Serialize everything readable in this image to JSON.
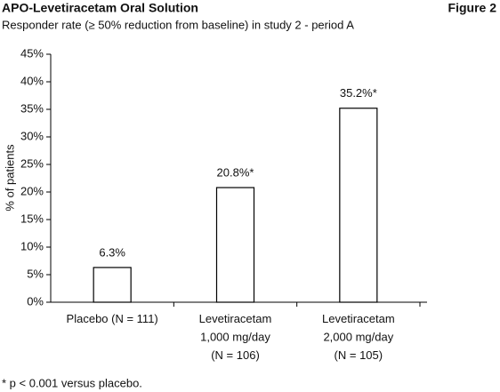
{
  "chart_data": {
    "type": "bar",
    "title": "APO-Levetiracetam Oral Solution",
    "figure_label": "Figure 2",
    "subtitle": "Responder rate (≥ 50% reduction from baseline) in study 2 - period A",
    "y_label": "% of patients",
    "footnote": "* p < 0.001 versus placebo.",
    "categories": [
      [
        "Placebo (N = 111)"
      ],
      [
        "Levetiracetam",
        "1,000 mg/day",
        "(N = 106)"
      ],
      [
        "Levetiracetam",
        "2,000 mg/day",
        "(N = 105)"
      ]
    ],
    "values": [
      6.3,
      20.8,
      35.2
    ],
    "value_labels": [
      "6.3%",
      "20.8%*",
      "35.2%*"
    ],
    "color": "#ffffff",
    "ylim": [
      0,
      45
    ],
    "yticks": [
      {
        "value": 0,
        "label": "0%"
      },
      {
        "value": 5,
        "label": "5%"
      },
      {
        "value": 10,
        "label": "10%"
      },
      {
        "value": 15,
        "label": "15%"
      },
      {
        "value": 20,
        "label": "20%"
      },
      {
        "value": 25,
        "label": "25%"
      },
      {
        "value": 30,
        "label": "30%"
      },
      {
        "value": 35,
        "label": "35%"
      },
      {
        "value": 40,
        "label": "40%"
      },
      {
        "value": 45,
        "label": "45%"
      }
    ],
    "grid": false
  }
}
